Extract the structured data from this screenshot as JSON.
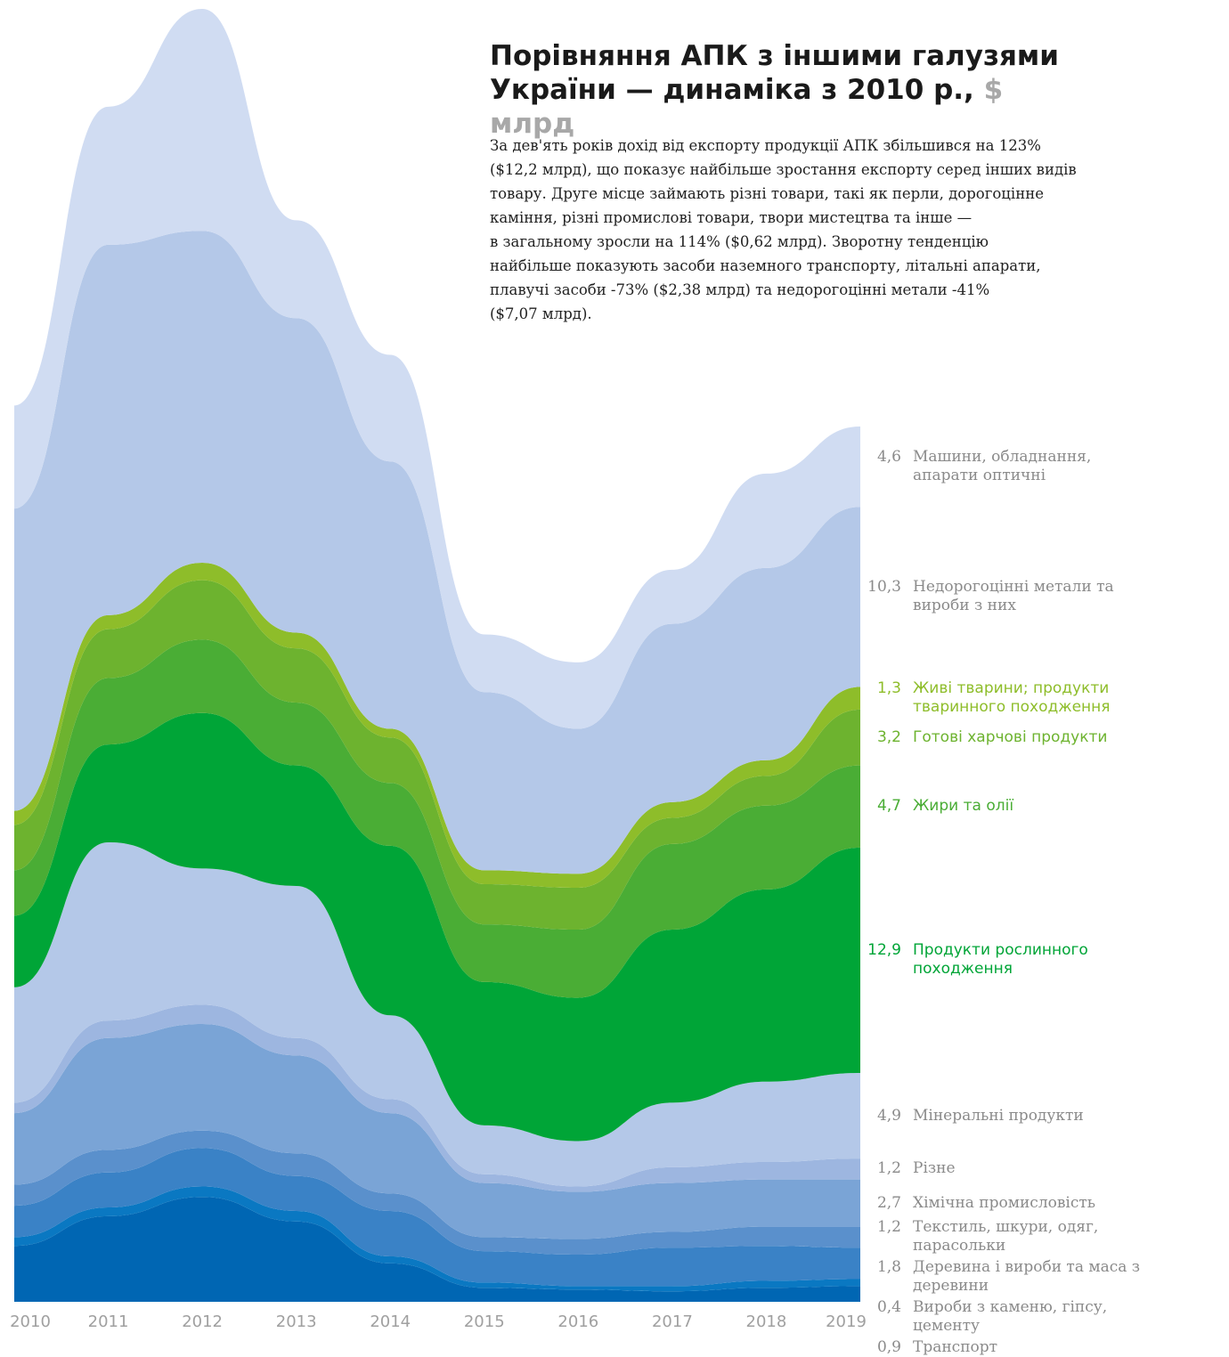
{
  "chart_data": {
    "type": "stacked_area",
    "title": "Порівняння АПК з іншими галузями України — динаміка з 2010 р.,",
    "title_unit": "$ млрд",
    "description": [
      "За дев'ять років дохід від експорту продукції АПК збільшився на 123%",
      "($12,2 млрд), що показує найбільше зростання експорту серед інших видів",
      "товару. Друге місце займають різні товари, такі як перли, дорогоцінне",
      "каміння, різні промислові товари, твори мистецтва та інше —",
      "в загальному зросли на 114% ($0,62 млрд). Зворотну тенденцію",
      "найбільше показують засоби наземного транспорту, літальні апарати,",
      "плавучі засоби -73% ($2,38 млрд) та недорогоцінні метали -41%",
      "($7,07 млрд)."
    ],
    "x": [
      2010,
      2011,
      2012,
      2013,
      2014,
      2015,
      2016,
      2017,
      2018,
      2019
    ],
    "series": [
      {
        "name": "Транспорт",
        "color": "#0066b3",
        "label_color": "#8a8a8a",
        "values": [
          3.2,
          4.9,
          6.0,
          4.6,
          2.2,
          0.8,
          0.7,
          0.6,
          0.8,
          0.9
        ],
        "value_labels": [
          null,
          null,
          null,
          null,
          null,
          null,
          null,
          null,
          null,
          "0,9"
        ]
      },
      {
        "name": "Вироби з каменю, гіпсу, цементу",
        "color": "#0a78c2",
        "label_color": "#8a8a8a",
        "values": [
          0.5,
          0.5,
          0.6,
          0.6,
          0.4,
          0.3,
          0.2,
          0.3,
          0.4,
          0.4
        ],
        "value_labels": [
          null,
          null,
          null,
          null,
          null,
          null,
          null,
          null,
          null,
          "0,4"
        ]
      },
      {
        "name": "Деревина і вироби та маса з деревини",
        "color": "#3a82c6",
        "label_color": "#8a8a8a",
        "values": [
          1.8,
          2.0,
          2.2,
          2.0,
          2.6,
          1.8,
          1.8,
          2.2,
          2.0,
          1.8
        ],
        "value_labels": [
          null,
          null,
          null,
          null,
          null,
          null,
          null,
          null,
          null,
          "1,8"
        ]
      },
      {
        "name": "Текстиль, шкури, одяг, парасольки",
        "color": "#5a90cc",
        "label_color": "#8a8a8a",
        "values": [
          1.2,
          1.3,
          1.0,
          1.3,
          1.0,
          0.8,
          0.9,
          0.9,
          1.1,
          1.2
        ],
        "value_labels": [
          null,
          null,
          null,
          null,
          null,
          null,
          null,
          null,
          null,
          "1,2"
        ]
      },
      {
        "name": "Хімічна промисловість",
        "color": "#7aa4d6",
        "label_color": "#8a8a8a",
        "values": [
          4.1,
          6.4,
          6.1,
          5.6,
          4.6,
          3.1,
          2.7,
          2.8,
          2.7,
          2.7
        ],
        "value_labels": [
          null,
          null,
          null,
          null,
          null,
          null,
          null,
          null,
          null,
          "2,7"
        ]
      },
      {
        "name": "Різне",
        "color": "#9db6e0",
        "label_color": "#8a8a8a",
        "values": [
          0.6,
          1.0,
          1.1,
          1.0,
          0.8,
          0.5,
          0.3,
          0.9,
          1.0,
          1.2
        ],
        "value_labels": [
          null,
          null,
          null,
          null,
          null,
          null,
          null,
          null,
          null,
          "1,2"
        ]
      },
      {
        "name": "Мінеральні продукти",
        "color": "#b4c8e8",
        "label_color": "#8a8a8a",
        "values": [
          6.6,
          10.2,
          7.8,
          8.7,
          4.8,
          2.8,
          2.6,
          3.7,
          4.6,
          4.9
        ],
        "value_labels": [
          null,
          null,
          null,
          null,
          null,
          null,
          null,
          null,
          null,
          "4,9"
        ]
      },
      {
        "name": "Продукти рослинного походження",
        "color": "#00a537",
        "label_color": "#00a537",
        "values": [
          4.1,
          5.6,
          8.9,
          6.9,
          9.7,
          8.2,
          8.2,
          9.9,
          11.0,
          12.9
        ],
        "value_labels": [
          null,
          null,
          null,
          null,
          null,
          null,
          null,
          null,
          null,
          "12,9"
        ]
      },
      {
        "name": "Жири та олії",
        "color": "#4aad35",
        "label_color": "#4aad35",
        "values": [
          2.6,
          3.8,
          4.2,
          3.6,
          3.6,
          3.3,
          3.9,
          4.9,
          4.8,
          4.7
        ],
        "value_labels": [
          null,
          null,
          null,
          null,
          null,
          null,
          null,
          null,
          null,
          "4,7"
        ]
      },
      {
        "name": "Готові харчові продукти",
        "color": "#6db32f",
        "label_color": "#6db32f",
        "values": [
          2.6,
          2.8,
          3.4,
          3.1,
          2.6,
          2.3,
          2.4,
          1.5,
          1.7,
          3.2
        ],
        "value_labels": [
          null,
          null,
          null,
          null,
          null,
          null,
          null,
          null,
          null,
          "3,2"
        ]
      },
      {
        "name": "Живі тварини; продукти тваринного походження",
        "color": "#8ebd2a",
        "label_color": "#8ebd2a",
        "values": [
          0.8,
          0.8,
          1.0,
          0.9,
          0.5,
          0.8,
          0.8,
          0.9,
          0.9,
          1.3
        ],
        "value_labels": [
          null,
          null,
          null,
          null,
          null,
          null,
          null,
          null,
          null,
          "1,3"
        ]
      },
      {
        "name": "Недорогоцінні метали та вироби з них",
        "color": "#b4c8e8",
        "label_color": "#8a8a8a",
        "values": [
          17.3,
          21.2,
          19.0,
          18.0,
          15.3,
          10.2,
          8.3,
          10.2,
          11.0,
          10.3
        ],
        "value_labels": [
          null,
          null,
          null,
          null,
          null,
          null,
          null,
          null,
          null,
          "10,3"
        ]
      },
      {
        "name": "Машини, обладнання, апарати оптичні",
        "color": "#d0dcf2",
        "label_color": "#8a8a8a",
        "values": [
          5.9,
          7.9,
          12.7,
          5.6,
          6.1,
          3.3,
          3.8,
          3.1,
          5.4,
          4.6
        ],
        "value_labels": [
          null,
          null,
          null,
          null,
          null,
          null,
          null,
          null,
          null,
          "4,6"
        ]
      }
    ]
  }
}
